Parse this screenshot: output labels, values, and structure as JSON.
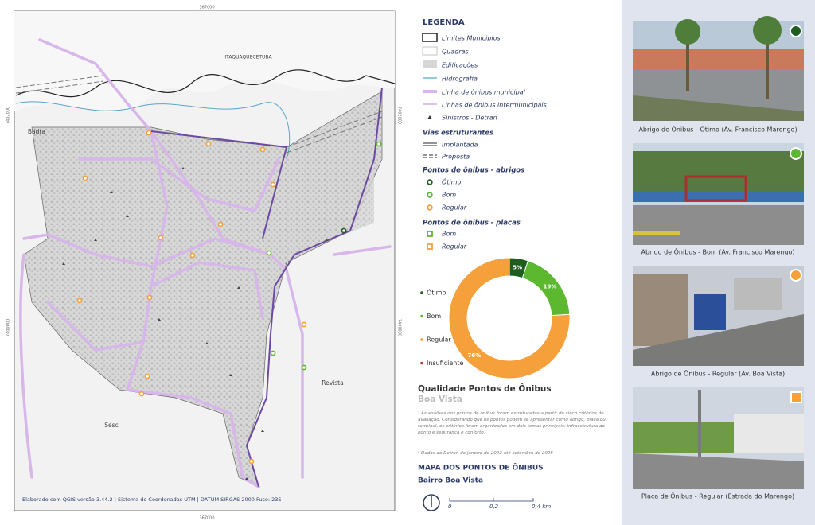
{
  "map": {
    "coord_top": "367000",
    "coord_bottom": "367000",
    "coord_left_top": "7402000",
    "coord_left_bottom": "7400000",
    "coord_right_top": "7402000",
    "coord_right_bottom": "7400000",
    "places": [
      "ITAQUAQUECETUBA",
      "Badra",
      "Revista",
      "Sesc"
    ],
    "credit": "Elaborado com QGIS versão 3.44.2 | Sistema de Coordenadas UTM | DATUM SIRGAS 2000 Fuso: 23S"
  },
  "legend": {
    "title": "LEGENDA",
    "items": [
      "Limites Municipios",
      "Quadras",
      "Edificações",
      "Hidrografia",
      "Linha de ônibus municipal",
      "Linhas de ônibus intermunicipais",
      "Sinistros - Detran"
    ],
    "roads_title": "Vias estruturantes",
    "roads": [
      "Implantada",
      "Proposta"
    ],
    "shelters_title": "Pontos de ônibus - abrigos",
    "shelters": [
      "Ótimo",
      "Bom",
      "Regular"
    ],
    "signs_title": "Pontos de ônibus - placas",
    "signs": [
      "Bom",
      "Regular"
    ]
  },
  "chart_data": {
    "type": "donut",
    "title": "Qualidade Pontos de Ônibus",
    "subtitle": "Boa Vista",
    "categories": [
      "Ótimo",
      "Bom",
      "Regular",
      "Insuficiente"
    ],
    "values": [
      5,
      19,
      76,
      0
    ],
    "value_labels": [
      "5%",
      "19%",
      "76%",
      null
    ],
    "colors": [
      "#1f5c1f",
      "#5cb82e",
      "#f5a03a",
      "#b5472f"
    ]
  },
  "notes": [
    "¹ As análises dos pontos de ônibus foram estruturadas a partir de cinco critérios de avaliação. Considerando que os pontos podem se apresentar como abrigo, placa ou terminal, os critérios foram organizados em dois temas principais: infraestrutura do ponto e segurança e conforto.",
    "² Dados do Detran de janeiro de 2022 até setembro de 2025"
  ],
  "footer": {
    "title": "MAPA DOS PONTOS DE ÔNIBUS",
    "subtitle": "Bairro Boa Vista",
    "scale": [
      "0",
      "0,2",
      "0,4 km"
    ]
  },
  "photos": [
    "Abrigo de Ônibus - Ótimo (Av. Francisco Marengo)",
    "Abrigo de Ônibus - Bom (Av. Francisco Marengo)",
    "Abrigo de Ônibus - Regular (Av. Boa Vista)",
    "Placa de Ônibus - Regular (Estrada do Marengo)"
  ]
}
